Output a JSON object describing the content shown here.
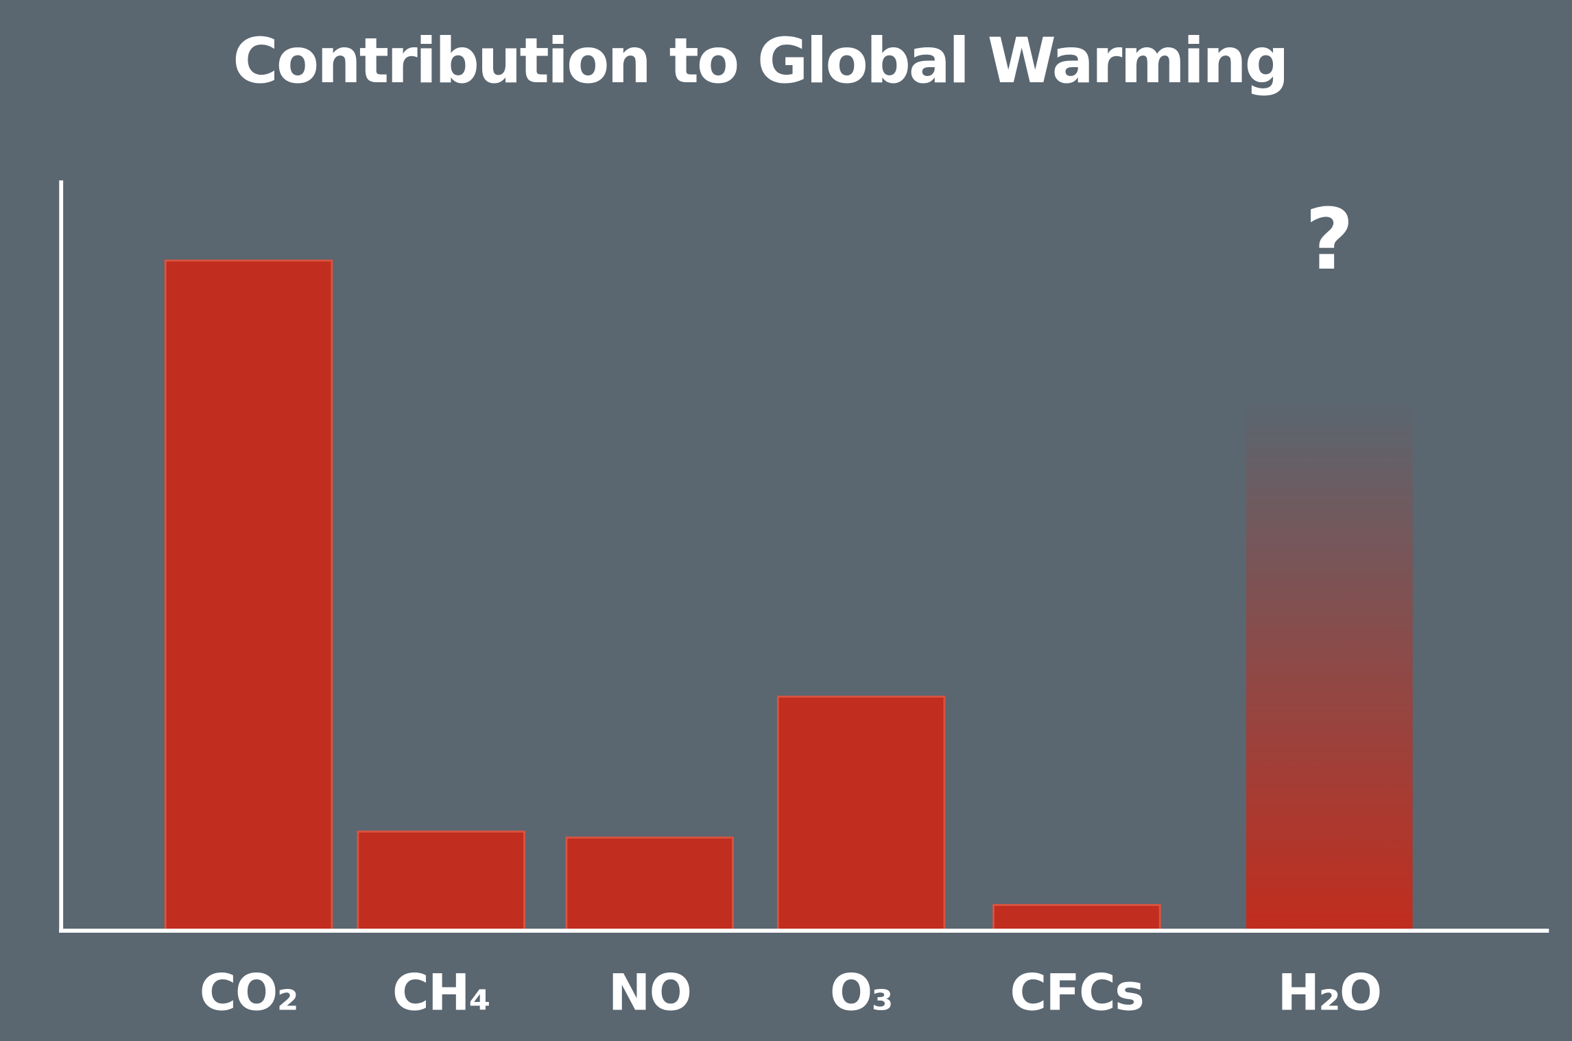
{
  "chart_data": {
    "type": "bar",
    "title": "Contribution to Global Warming",
    "xlabel": "",
    "ylabel": "",
    "categories": [
      "CO₂",
      "CH₄",
      "NO",
      "O₃",
      "CFCs",
      "H₂O"
    ],
    "values": [
      89.3,
      13.1,
      12.3,
      31.1,
      3.3,
      70.6
    ],
    "uncertain": [
      false,
      false,
      false,
      false,
      false,
      true
    ],
    "annotations": [
      {
        "category": "H₂O",
        "text": "?"
      }
    ],
    "ylim": [
      0,
      100
    ],
    "y_ticks_shown": false,
    "grid": false,
    "legend": "none",
    "colors": {
      "background": "#5a6670",
      "bar": "#c12d1e",
      "bar_edge": "#d9533f",
      "axis": "#ffffff",
      "text": "#ffffff"
    }
  }
}
